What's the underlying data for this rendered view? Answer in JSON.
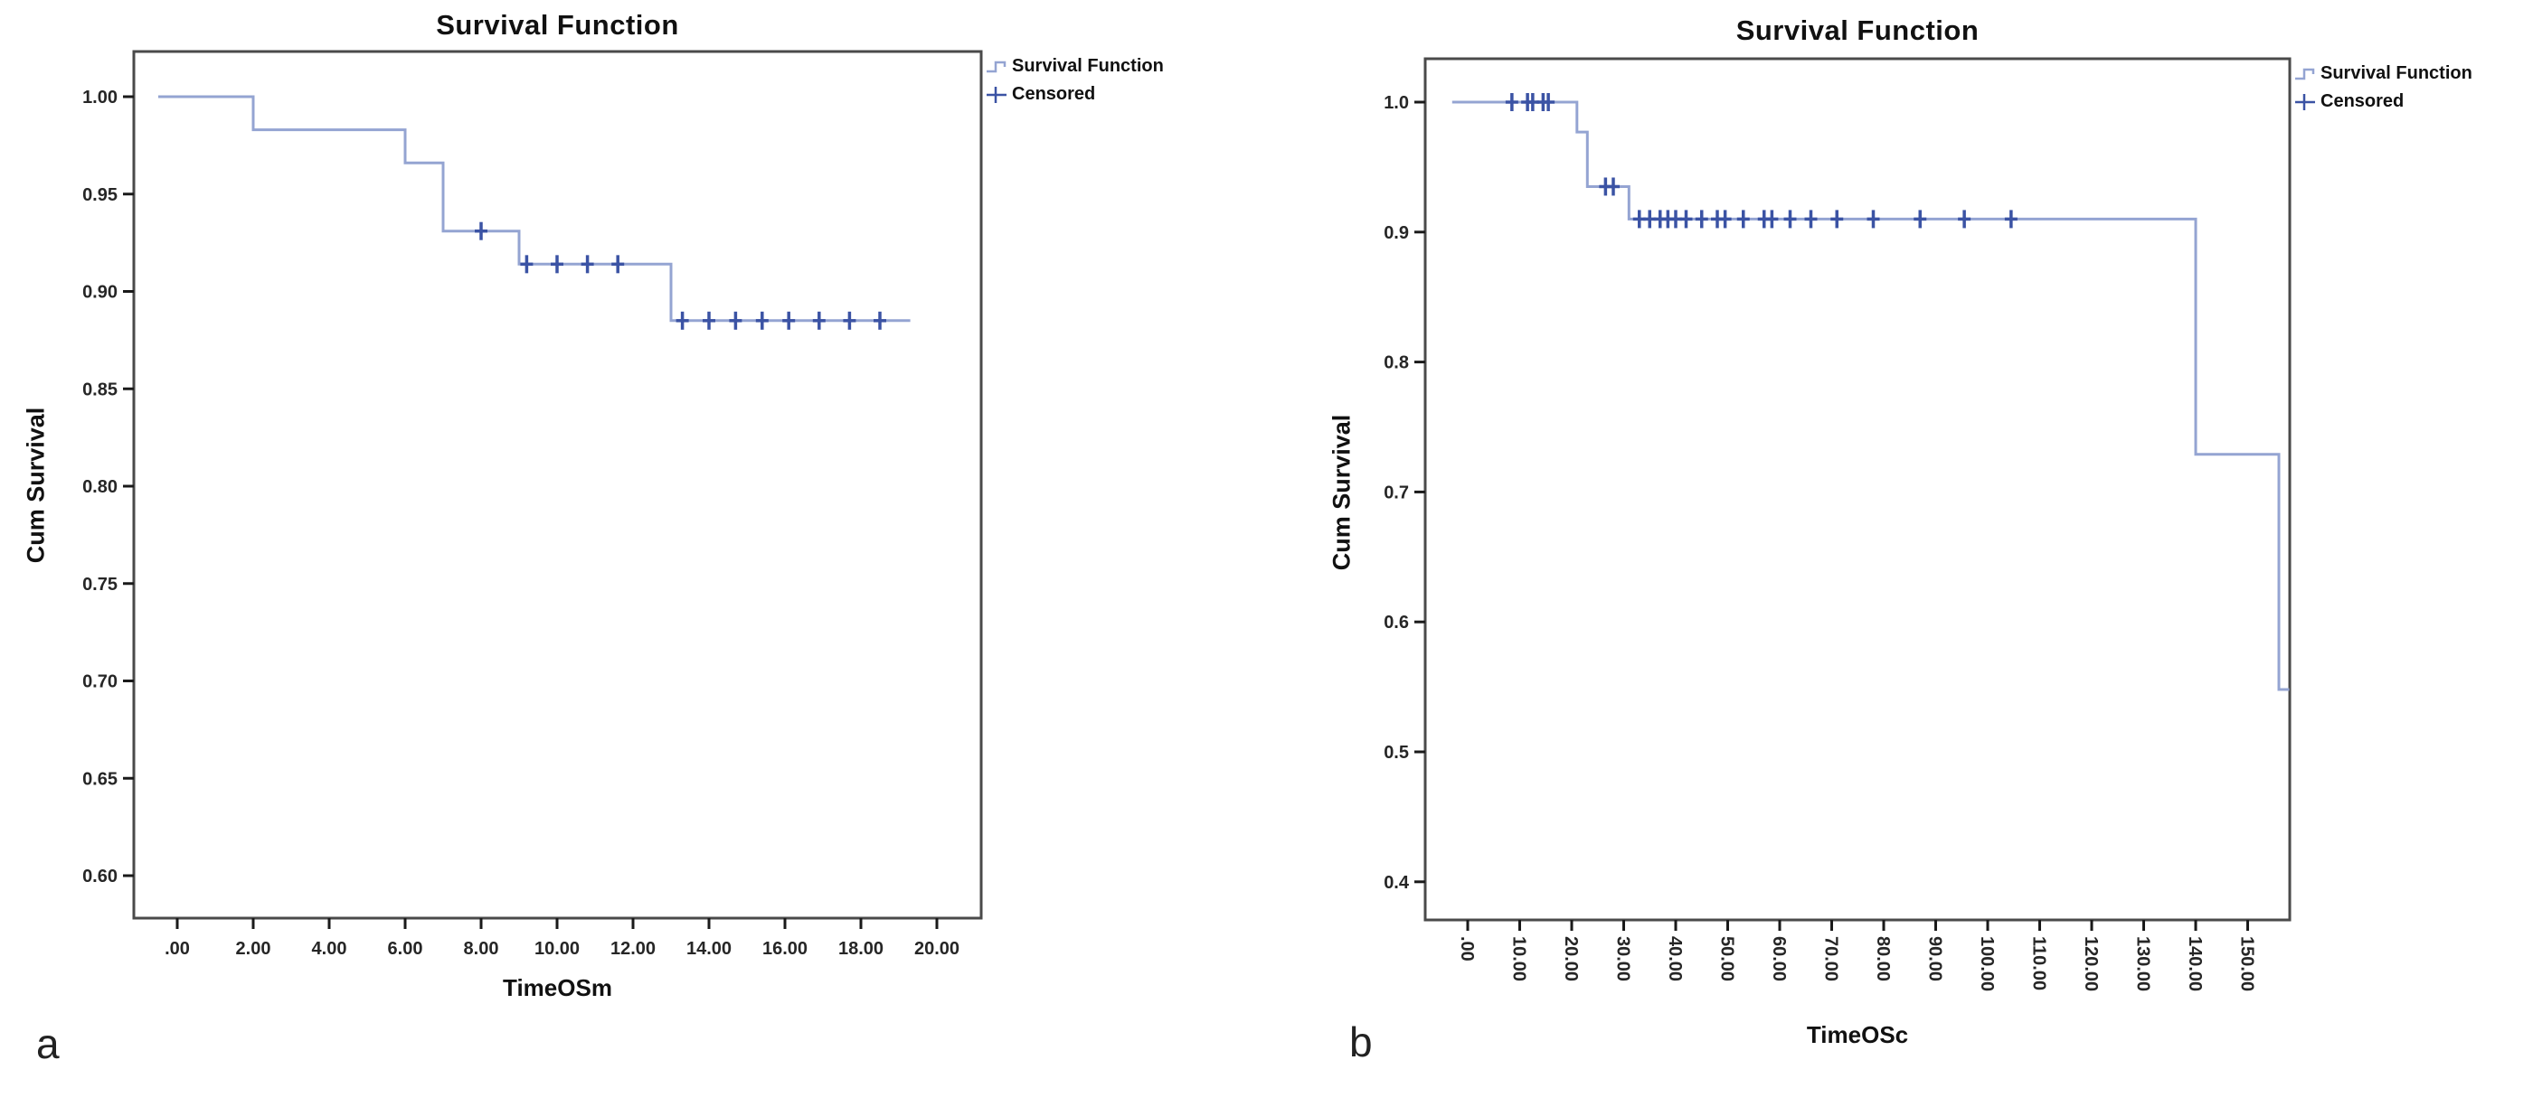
{
  "chart_data": [
    {
      "type": "line",
      "subtype": "kaplan-meier-step-function",
      "title": "Survival Function",
      "xlabel": "TimeOSm",
      "ylabel": "Cum Survival",
      "panel_letter": "a",
      "legend": [
        "Survival Function",
        "Censored"
      ],
      "legend_position": "top-right-outside",
      "grid": false,
      "xlim": [
        -1.2,
        21.2
      ],
      "ylim": [
        0.578,
        1.023
      ],
      "series_color": "#94a4d2",
      "censor_color": "#3b53a4",
      "x_tick_rotation": 0,
      "x_ticks": [
        {
          "value": 0,
          "label": ".00"
        },
        {
          "value": 2,
          "label": "2.00"
        },
        {
          "value": 4,
          "label": "4.00"
        },
        {
          "value": 6,
          "label": "6.00"
        },
        {
          "value": 8,
          "label": "8.00"
        },
        {
          "value": 10,
          "label": "10.00"
        },
        {
          "value": 12,
          "label": "12.00"
        },
        {
          "value": 14,
          "label": "14.00"
        },
        {
          "value": 16,
          "label": "16.00"
        },
        {
          "value": 18,
          "label": "18.00"
        },
        {
          "value": 20,
          "label": "20.00"
        }
      ],
      "y_ticks": [
        {
          "value": 1.0,
          "label": "1.00"
        },
        {
          "value": 0.95,
          "label": "0.95"
        },
        {
          "value": 0.9,
          "label": "0.90"
        },
        {
          "value": 0.85,
          "label": "0.85"
        },
        {
          "value": 0.8,
          "label": "0.80"
        },
        {
          "value": 0.75,
          "label": "0.75"
        },
        {
          "value": 0.7,
          "label": "0.70"
        },
        {
          "value": 0.65,
          "label": "0.65"
        },
        {
          "value": 0.6,
          "label": "0.60"
        }
      ],
      "start_x": -0.5,
      "end_x": 19.3,
      "steps": [
        {
          "level": 1.0,
          "until": 2,
          "censored": []
        },
        {
          "level": 0.983,
          "until": 6,
          "censored": []
        },
        {
          "level": 0.966,
          "until": 7,
          "censored": []
        },
        {
          "level": 0.931,
          "until": 9,
          "censored": [
            8.0
          ]
        },
        {
          "level": 0.914,
          "until": 13,
          "censored": [
            9.2,
            10.0,
            10.8,
            11.6
          ]
        },
        {
          "level": 0.885,
          "until": 19.3,
          "censored": [
            13.3,
            14.0,
            14.7,
            15.4,
            16.1,
            16.9,
            17.7,
            18.5
          ]
        }
      ]
    },
    {
      "type": "line",
      "subtype": "kaplan-meier-step-function",
      "title": "Survival Function",
      "xlabel": "TimeOSc",
      "ylabel": "Cum Survival",
      "panel_letter": "b",
      "legend": [
        "Survival Function",
        "Censored"
      ],
      "legend_position": "top-right-outside",
      "grid": false,
      "xlim": [
        -8,
        158
      ],
      "ylim": [
        0.371,
        1.033
      ],
      "series_color": "#94a4d2",
      "censor_color": "#3b53a4",
      "x_tick_rotation": 90,
      "x_ticks": [
        {
          "value": 0,
          "label": ".00"
        },
        {
          "value": 10,
          "label": "10.00"
        },
        {
          "value": 20,
          "label": "20.00"
        },
        {
          "value": 30,
          "label": "30.00"
        },
        {
          "value": 40,
          "label": "40.00"
        },
        {
          "value": 50,
          "label": "50.00"
        },
        {
          "value": 60,
          "label": "60.00"
        },
        {
          "value": 70,
          "label": "70.00"
        },
        {
          "value": 80,
          "label": "80.00"
        },
        {
          "value": 90,
          "label": "90.00"
        },
        {
          "value": 100,
          "label": "100.00"
        },
        {
          "value": 110,
          "label": "110.00"
        },
        {
          "value": 120,
          "label": "120.00"
        },
        {
          "value": 130,
          "label": "130.00"
        },
        {
          "value": 140,
          "label": "140.00"
        },
        {
          "value": 150,
          "label": "150.00"
        }
      ],
      "y_ticks": [
        {
          "value": 1.0,
          "label": "1.0"
        },
        {
          "value": 0.9,
          "label": "0.9"
        },
        {
          "value": 0.8,
          "label": "0.8"
        },
        {
          "value": 0.7,
          "label": "0.7"
        },
        {
          "value": 0.6,
          "label": "0.6"
        },
        {
          "value": 0.5,
          "label": "0.5"
        },
        {
          "value": 0.4,
          "label": "0.4"
        }
      ],
      "start_x": -3,
      "end_x": 158,
      "steps": [
        {
          "level": 1.0,
          "until": 21,
          "censored": [
            8.5,
            11.5,
            12.5,
            14.5,
            15.5
          ]
        },
        {
          "level": 0.977,
          "until": 23,
          "censored": []
        },
        {
          "level": 0.935,
          "until": 31,
          "censored": [
            26.5,
            28
          ]
        },
        {
          "level": 0.91,
          "until": 140,
          "censored": [
            33,
            35,
            37,
            38.5,
            40,
            42,
            45,
            48,
            49.5,
            53,
            57,
            58.5,
            62,
            66,
            71,
            78,
            87,
            95.5,
            104.5
          ]
        },
        {
          "level": 0.729,
          "until": 156,
          "censored": []
        },
        {
          "level": 0.548,
          "until": 158,
          "censored": []
        }
      ]
    }
  ]
}
